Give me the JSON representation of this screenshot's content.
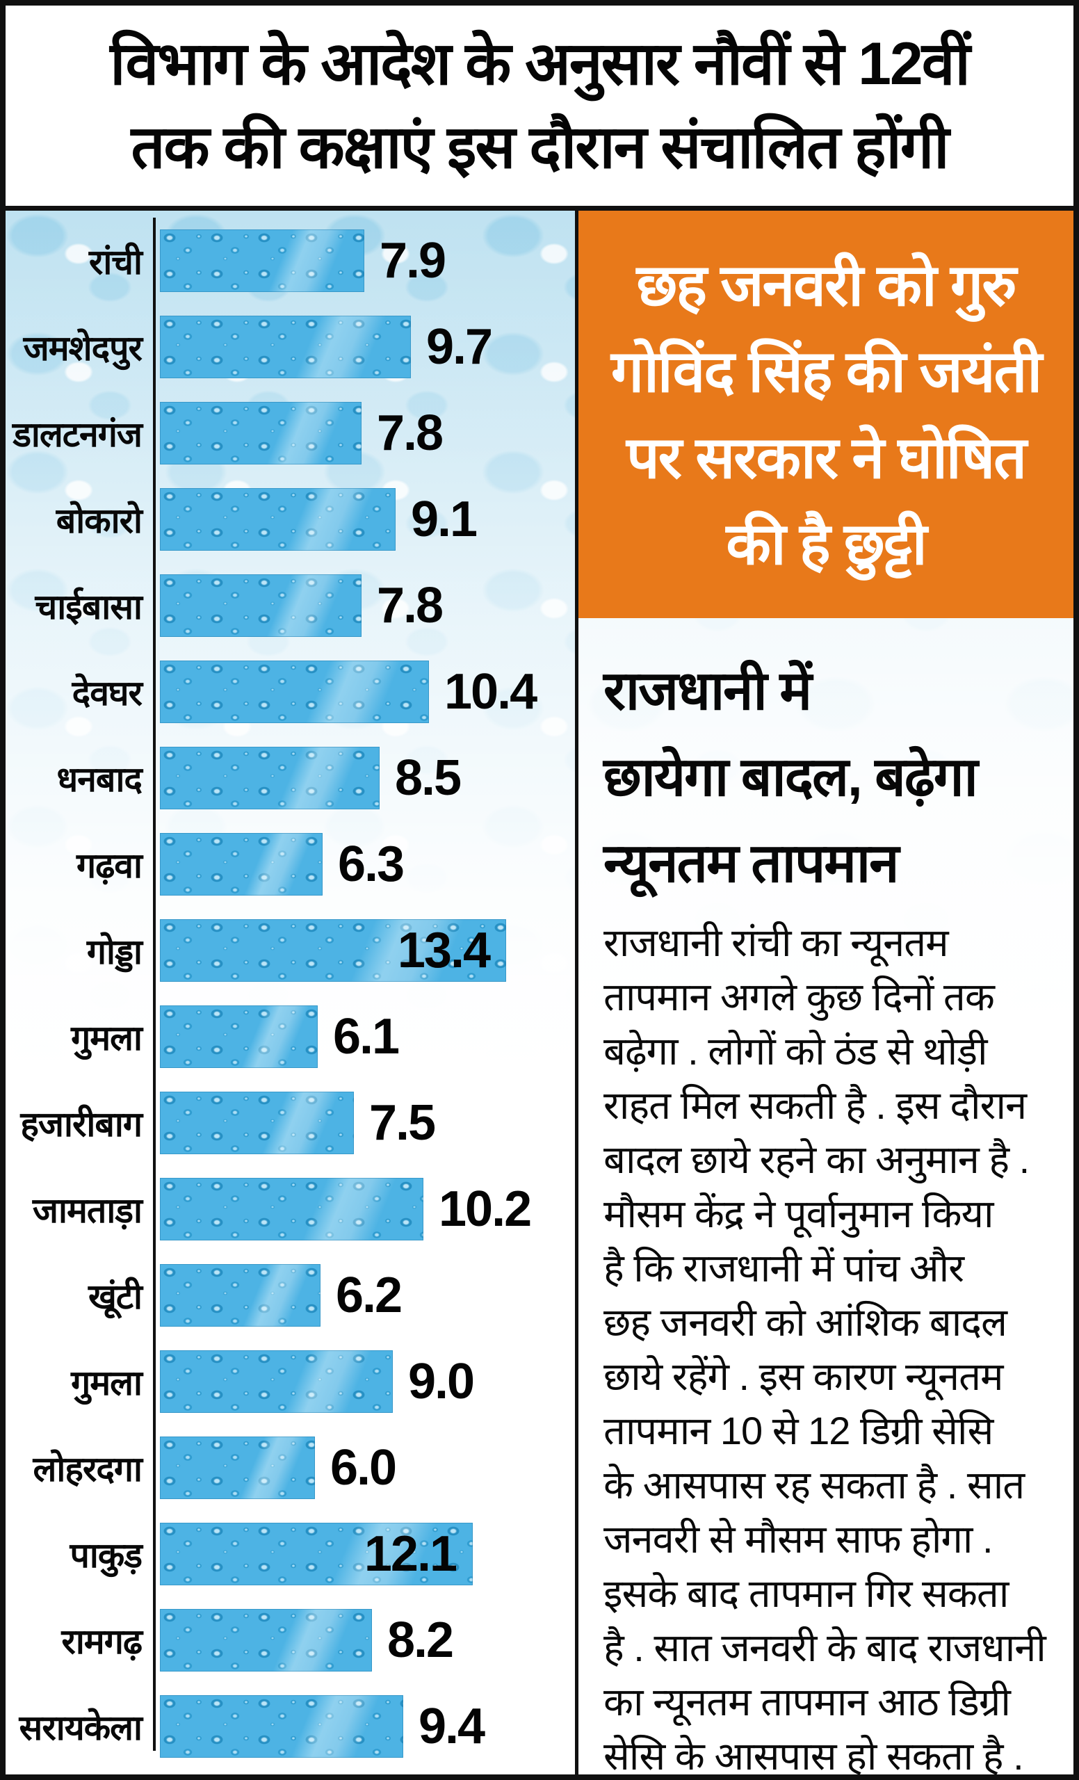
{
  "title": {
    "line1": "विभाग के आदेश के अनुसार नौवीं से 12वीं",
    "line2": "तक की कक्षाएं इस दौरान संचालित होंगी"
  },
  "chart_data": {
    "type": "bar",
    "orientation": "horizontal",
    "categories": [
      "रांची",
      "जमशेदपुर",
      "डालटनगंज",
      "बोकारो",
      "चाईबासा",
      "देवघर",
      "धनबाद",
      "गढ़वा",
      "गोड्डा",
      "गुमला",
      "हजारीबाग",
      "जामताड़ा",
      "खूंटी",
      "गुमला",
      "लोहरदगा",
      "पाकुड़",
      "रामगढ़",
      "सरायकेला"
    ],
    "values": [
      7.9,
      9.7,
      7.8,
      9.1,
      7.8,
      10.4,
      8.5,
      6.3,
      13.4,
      6.1,
      7.5,
      10.2,
      6.2,
      9.0,
      6.0,
      12.1,
      8.2,
      9.4
    ],
    "value_labels": [
      "7.9",
      "9.7",
      "7.8",
      "9.1",
      "7.8",
      "10.4",
      "8.5",
      "6.3",
      "13.4",
      "6.1",
      "7.5",
      "10.2",
      "6.2",
      "9.0",
      "6.0",
      "12.1",
      "8.2",
      "9.4"
    ],
    "title": "",
    "xlabel": "",
    "ylabel": "",
    "xlim": [
      0,
      14
    ],
    "grid": false,
    "legend": false,
    "bar_color": "#4DB3E4"
  },
  "notice_box": {
    "bg_color": "#E8791A",
    "text_color": "#FFFFFF",
    "lines": [
      "छह जनवरी को गुरु",
      "गोविंद सिंह की जयंती",
      "पर सरकार ने घोषित",
      "की है छुट्टी"
    ]
  },
  "weather_article": {
    "headline_lines": [
      "राजधानी में",
      "छायेगा बादल, बढ़ेगा",
      "न्यूनतम तापमान"
    ],
    "body_lines": [
      "राजधानी रांची का न्यूनतम",
      "तापमान अगले कुछ दिनों तक",
      "बढ़ेगा . लोगों को ठंड से थोड़ी",
      "राहत मिल सकती है . इस दौरान",
      "बादल छाये रहने का अनुमान है .",
      "मौसम केंद्र ने पूर्वानुमान किया",
      "है कि राजधानी में पांच और",
      "छह जनवरी को आंशिक बादल",
      "छाये रहेंगे . इस कारण न्यूनतम",
      "तापमान 10 से 12 डिग्री सेसि",
      "के आसपास रह सकता है . सात",
      "जनवरी से मौसम साफ होगा .",
      "इसके बाद तापमान गिर सकता",
      "है . सात जनवरी के बाद राजधानी",
      "का न्यूनतम तापमान आठ डिग्री",
      "सेसि के आसपास हो सकता है ."
    ]
  }
}
